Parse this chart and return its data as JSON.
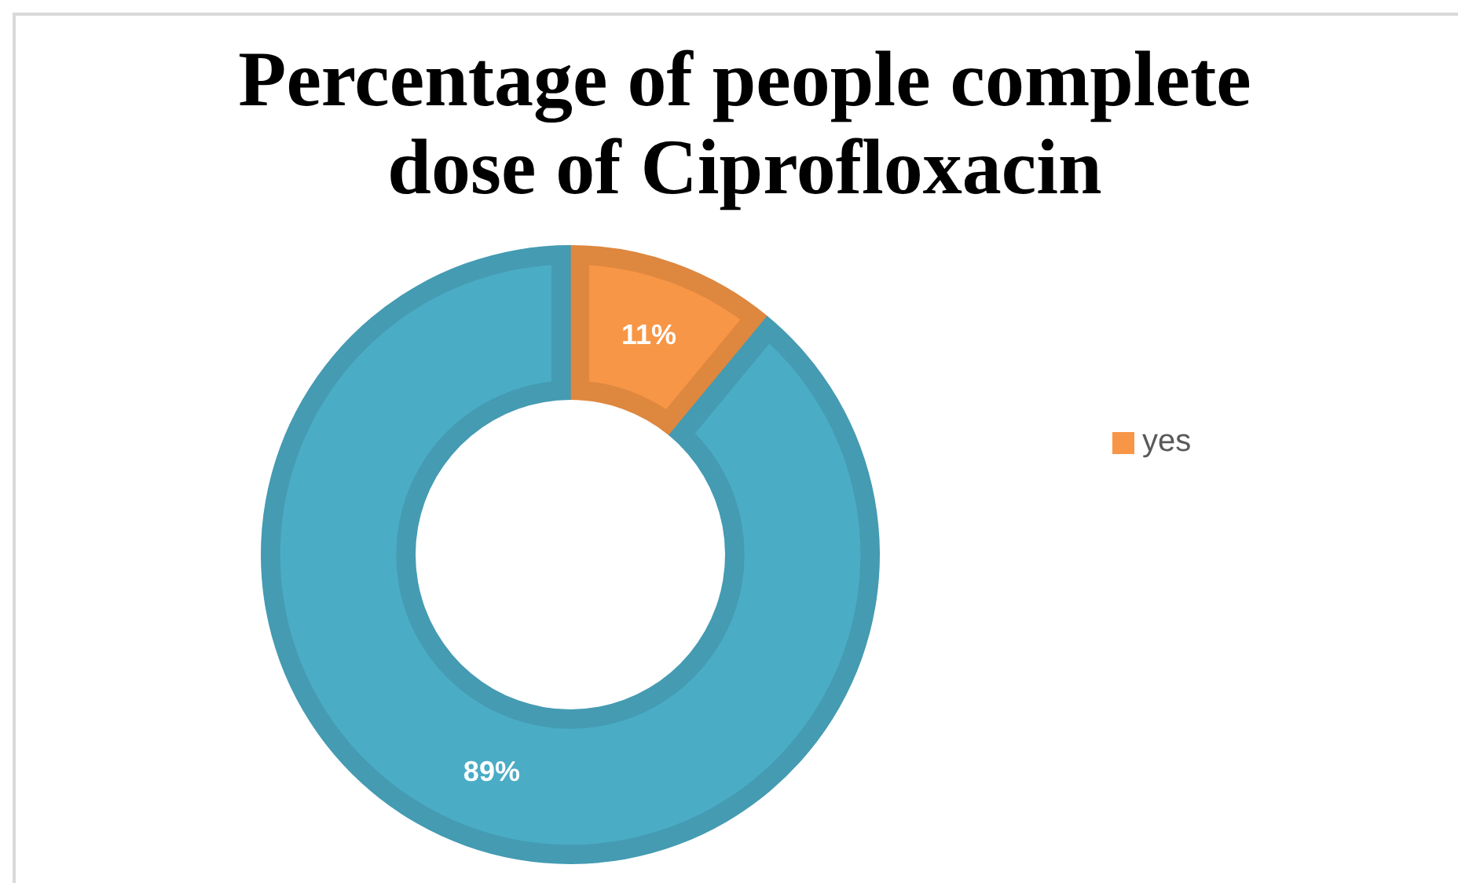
{
  "chart_data": {
    "type": "donut",
    "title": "Percentage of people complete dose of Ciprofloxacin",
    "categories": [
      "yes",
      null
    ],
    "values": [
      11,
      89
    ],
    "colors": [
      "#f79646",
      "#4bacc6"
    ],
    "value_labels": [
      "11%",
      "89%"
    ],
    "legend": "right"
  }
}
